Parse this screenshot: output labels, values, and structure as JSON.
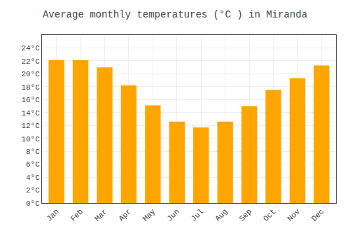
{
  "chart_data": {
    "type": "bar",
    "title": "Average monthly temperatures (°C ) in Miranda",
    "categories": [
      "Jan",
      "Feb",
      "Mar",
      "Apr",
      "May",
      "Jun",
      "Jul",
      "Aug",
      "Sep",
      "Oct",
      "Nov",
      "Dec"
    ],
    "values": [
      22.1,
      22.1,
      21.0,
      18.2,
      15.1,
      12.6,
      11.7,
      12.6,
      15.0,
      17.5,
      19.3,
      21.3
    ],
    "color": "#FFA500",
    "ylim": [
      0,
      26
    ],
    "yticks": [
      {
        "value": 0,
        "label": "0°C"
      },
      {
        "value": 2,
        "label": "2°C"
      },
      {
        "value": 4,
        "label": "4°C"
      },
      {
        "value": 6,
        "label": "6°C"
      },
      {
        "value": 8,
        "label": "8°C"
      },
      {
        "value": 10,
        "label": "10°C"
      },
      {
        "value": 12,
        "label": "12°C"
      },
      {
        "value": 14,
        "label": "14°C"
      },
      {
        "value": 16,
        "label": "16°C"
      },
      {
        "value": 18,
        "label": "18°C"
      },
      {
        "value": 20,
        "label": "20°C"
      },
      {
        "value": 22,
        "label": "22°C"
      },
      {
        "value": 24,
        "label": "24°C"
      }
    ],
    "grid": true
  }
}
